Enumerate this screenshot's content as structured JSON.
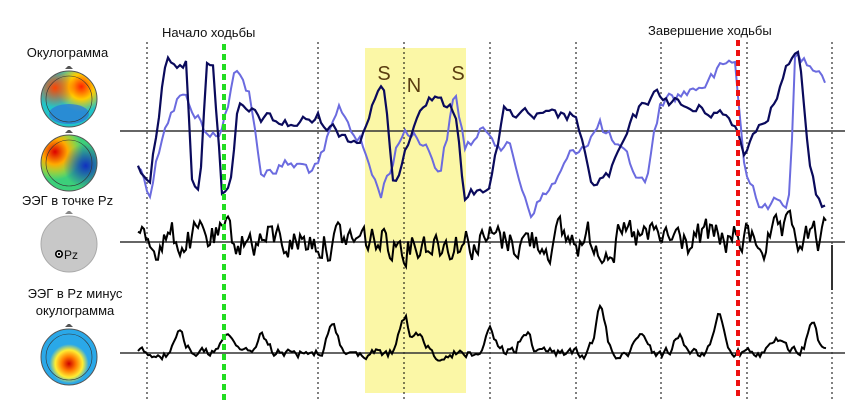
{
  "labels": {
    "oculogram": "Окулограмма",
    "eeg_pz": "ЭЭГ в точке Pz",
    "eeg_pz_minus_line1": "ЭЭГ в Pz минус",
    "eeg_pz_minus_line2": "окулограмма",
    "pz_electrode": "Pz",
    "walk_start": "Начало ходьбы",
    "walk_end": "Завершение ходьбы",
    "stage_s1": "S",
    "stage_n": "N",
    "stage_s2": "S"
  },
  "colors": {
    "dark_trace": "#0a0a5c",
    "light_trace": "#6b6bdf",
    "eeg_trace": "#000000",
    "baseline": "#333333",
    "highlight": "#fbf7a6",
    "start_marker": "#22dd22",
    "end_marker": "#ee1111",
    "stage_letter": "#5a3d10",
    "head_gray": "#c8c8c8"
  },
  "icons": {
    "oculogram_map_1": "topographic-head-map",
    "oculogram_map_2": "topographic-head-map",
    "pz_head": "electrode-head-icon",
    "residual_map": "topographic-head-map"
  }
}
